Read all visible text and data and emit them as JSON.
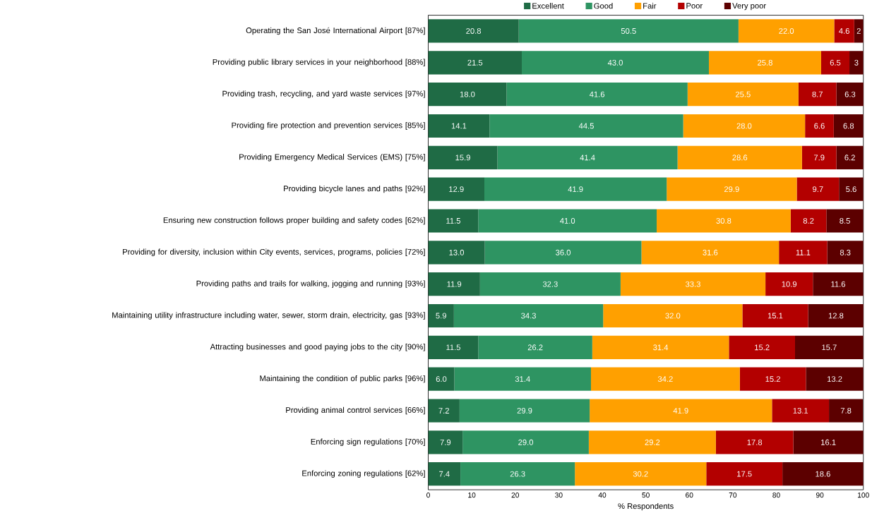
{
  "chart_data": {
    "type": "bar",
    "orientation": "horizontal",
    "stacked": true,
    "xlabel": "% Respondents",
    "categories": [
      "Operating the San José International Airport [87%]",
      "Providing public library services in your neighborhood [88%]",
      "Providing trash, recycling, and yard waste services [97%]",
      "Providing fire protection and prevention services [85%]",
      "Providing Emergency Medical Services (EMS) [75%]",
      "Providing bicycle lanes and paths [92%]",
      "Ensuring new construction follows proper building and safety codes [62%]",
      "Providing for diversity, inclusion within City events, services, programs, policies [72%]",
      "Providing paths and trails for walking, jogging and running [93%]",
      "Maintaining utility infrastructure including water, sewer, storm drain, electricity, gas [93%]",
      "Attracting businesses and good paying jobs to the city [90%]",
      "Maintaining the condition of public parks [96%]",
      "Providing animal control services [66%]",
      "Enforcing sign regulations [70%]",
      "Enforcing zoning regulations [62%]"
    ],
    "series": [
      {
        "name": "Excellent",
        "color": "#1f6b45",
        "values": [
          20.8,
          21.5,
          18.0,
          14.1,
          15.9,
          12.9,
          11.5,
          13.0,
          11.9,
          5.9,
          11.5,
          6.0,
          7.2,
          7.9,
          7.4
        ],
        "value_labels": [
          "20.8",
          "21.5",
          "18.0",
          "14.1",
          "15.9",
          "12.9",
          "11.5",
          "13.0",
          "11.9",
          "5.9",
          "11.5",
          "6.0",
          "7.2",
          "7.9",
          "7.4"
        ]
      },
      {
        "name": "Good",
        "color": "#2e9462",
        "values": [
          50.5,
          43.0,
          41.6,
          44.5,
          41.4,
          41.9,
          41.0,
          36.0,
          32.3,
          34.3,
          26.2,
          31.4,
          29.9,
          29.0,
          26.3
        ],
        "value_labels": [
          "50.5",
          "43.0",
          "41.6",
          "44.5",
          "41.4",
          "41.9",
          "41.0",
          "36.0",
          "32.3",
          "34.3",
          "26.2",
          "31.4",
          "29.9",
          "29.0",
          "26.3"
        ]
      },
      {
        "name": "Fair",
        "color": "#ffa000",
        "values": [
          22.0,
          25.8,
          25.5,
          28.0,
          28.6,
          29.9,
          30.8,
          31.6,
          33.3,
          32.0,
          31.4,
          34.2,
          41.9,
          29.2,
          30.2
        ],
        "value_labels": [
          "22.0",
          "25.8",
          "25.5",
          "28.0",
          "28.6",
          "29.9",
          "30.8",
          "31.6",
          "33.3",
          "32.0",
          "31.4",
          "34.2",
          "41.9",
          "29.2",
          "30.2"
        ]
      },
      {
        "name": "Poor",
        "color": "#b30000",
        "values": [
          4.6,
          6.5,
          8.7,
          6.6,
          7.9,
          9.7,
          8.2,
          11.1,
          10.9,
          15.1,
          15.2,
          15.2,
          13.1,
          17.8,
          17.5
        ],
        "value_labels": [
          "4.6",
          "6.5",
          "8.7",
          "6.6",
          "7.9",
          "9.7",
          "8.2",
          "11.1",
          "10.9",
          "15.1",
          "15.2",
          "15.2",
          "13.1",
          "17.8",
          "17.5"
        ]
      },
      {
        "name": "Very poor",
        "color": "#5c0000",
        "values": [
          2.1,
          3.2,
          6.3,
          6.8,
          6.2,
          5.6,
          8.5,
          8.3,
          11.6,
          12.8,
          15.7,
          13.2,
          7.8,
          16.1,
          18.6
        ],
        "value_labels": [
          "2",
          "3",
          "6.3",
          "6.8",
          "6.2",
          "5.6",
          "8.5",
          "8.3",
          "11.6",
          "12.8",
          "15.7",
          "13.2",
          "7.8",
          "16.1",
          "18.6"
        ]
      }
    ],
    "xlim": [
      0,
      100
    ],
    "xticks": [
      0,
      10,
      20,
      30,
      40,
      50,
      60,
      70,
      80,
      90,
      100
    ],
    "legend": "top",
    "grid": false
  }
}
